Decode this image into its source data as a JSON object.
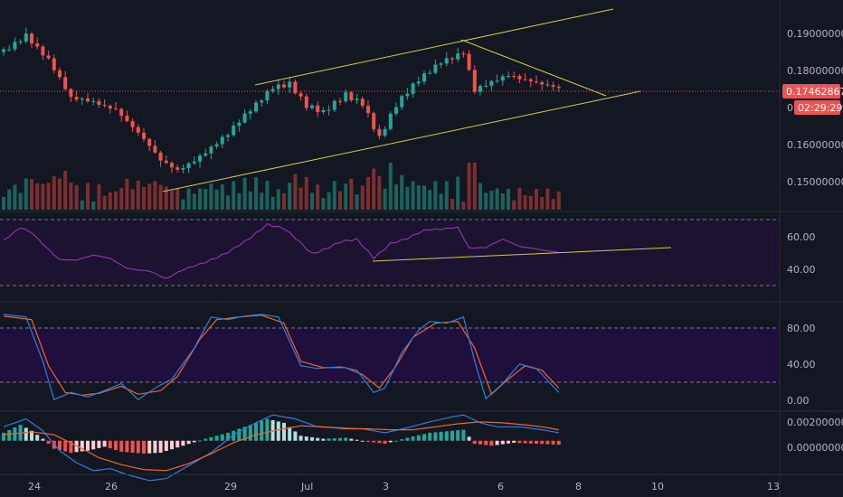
{
  "colors": {
    "background": "#131722",
    "bull": "#26a69a",
    "bear": "#ef5350",
    "trendline": "#d8c84a",
    "rsi": "#9c3bb8",
    "stoch_k": "#2c7ee0",
    "stoch_d": "#f0652b",
    "macd": "#2c7ee0",
    "signal": "#f0652b",
    "last_price": "#ef5350"
  },
  "last_price": {
    "value": "0.17462867",
    "countdown": "02:29:29",
    "hidden_label": "0."
  },
  "price_axis": {
    "ticks": [
      "0.19000000",
      "0.18000000",
      "0.16000000",
      "0.15000000"
    ]
  },
  "rsi_axis": {
    "ticks": [
      "60.00",
      "40.00"
    ]
  },
  "stoch_axis": {
    "ticks": [
      "80.00",
      "40.00",
      "0.00"
    ]
  },
  "macd_axis": {
    "ticks": [
      "0.00200000",
      "0.00000000"
    ]
  },
  "time_axis": {
    "ticks": [
      "24",
      "26",
      "29",
      "Jul",
      "3",
      "6",
      "8",
      "10",
      "13"
    ]
  },
  "chart_data": {
    "type": "candlestick",
    "title": "",
    "ylim": [
      0.143,
      0.197
    ],
    "candle_count": 100,
    "start_price": 0.1845,
    "close_path": [
      {
        "i": 0,
        "v": 0.1845
      },
      {
        "i": 4,
        "v": 0.1895
      },
      {
        "i": 8,
        "v": 0.1825
      },
      {
        "i": 12,
        "v": 0.1718
      },
      {
        "i": 16,
        "v": 0.1715
      },
      {
        "i": 20,
        "v": 0.17
      },
      {
        "i": 24,
        "v": 0.163
      },
      {
        "i": 28,
        "v": 0.1555
      },
      {
        "i": 31,
        "v": 0.1535
      },
      {
        "i": 35,
        "v": 0.1575
      },
      {
        "i": 40,
        "v": 0.1625
      },
      {
        "i": 44,
        "v": 0.169
      },
      {
        "i": 48,
        "v": 0.1758
      },
      {
        "i": 51,
        "v": 0.1765
      },
      {
        "i": 54,
        "v": 0.17
      },
      {
        "i": 57,
        "v": 0.168
      },
      {
        "i": 61,
        "v": 0.1735
      },
      {
        "i": 64,
        "v": 0.1715
      },
      {
        "i": 67,
        "v": 0.162
      },
      {
        "i": 70,
        "v": 0.17
      },
      {
        "i": 74,
        "v": 0.177
      },
      {
        "i": 78,
        "v": 0.1825
      },
      {
        "i": 82,
        "v": 0.1845
      },
      {
        "i": 84,
        "v": 0.174
      },
      {
        "i": 87,
        "v": 0.176
      },
      {
        "i": 90,
        "v": 0.1785
      },
      {
        "i": 94,
        "v": 0.1775
      },
      {
        "i": 99,
        "v": 0.1746
      }
    ],
    "indicators": {
      "rsi": {
        "ylim": [
          22,
          74
        ],
        "bands": [
          70,
          30
        ],
        "points": [
          {
            "i": 0,
            "v": 56
          },
          {
            "i": 3,
            "v": 65
          },
          {
            "i": 5,
            "v": 62
          },
          {
            "i": 8,
            "v": 51
          },
          {
            "i": 10,
            "v": 44
          },
          {
            "i": 13,
            "v": 43
          },
          {
            "i": 16,
            "v": 46
          },
          {
            "i": 19,
            "v": 44
          },
          {
            "i": 22,
            "v": 38
          },
          {
            "i": 26,
            "v": 36
          },
          {
            "i": 29,
            "v": 30
          },
          {
            "i": 32,
            "v": 36
          },
          {
            "i": 36,
            "v": 42
          },
          {
            "i": 40,
            "v": 49
          },
          {
            "i": 44,
            "v": 58
          },
          {
            "i": 47,
            "v": 67
          },
          {
            "i": 50,
            "v": 65
          },
          {
            "i": 52,
            "v": 59
          },
          {
            "i": 55,
            "v": 48
          },
          {
            "i": 57,
            "v": 50
          },
          {
            "i": 60,
            "v": 55
          },
          {
            "i": 63,
            "v": 57
          },
          {
            "i": 66,
            "v": 45
          },
          {
            "i": 69,
            "v": 55
          },
          {
            "i": 72,
            "v": 58
          },
          {
            "i": 75,
            "v": 63
          },
          {
            "i": 78,
            "v": 64
          },
          {
            "i": 81,
            "v": 66
          },
          {
            "i": 83,
            "v": 52
          },
          {
            "i": 86,
            "v": 52
          },
          {
            "i": 89,
            "v": 57
          },
          {
            "i": 92,
            "v": 52
          },
          {
            "i": 95,
            "v": 51
          },
          {
            "i": 99,
            "v": 49
          }
        ]
      },
      "stoch_rsi": {
        "ylim": [
          -8,
          108
        ],
        "bands": [
          80,
          20
        ],
        "k": [
          {
            "i": 0,
            "v": 98
          },
          {
            "i": 4,
            "v": 95
          },
          {
            "i": 7,
            "v": 45
          },
          {
            "i": 9,
            "v": 2
          },
          {
            "i": 12,
            "v": 10
          },
          {
            "i": 15,
            "v": 5
          },
          {
            "i": 18,
            "v": 12
          },
          {
            "i": 21,
            "v": 20
          },
          {
            "i": 24,
            "v": 2
          },
          {
            "i": 27,
            "v": 15
          },
          {
            "i": 30,
            "v": 25
          },
          {
            "i": 34,
            "v": 60
          },
          {
            "i": 37,
            "v": 95
          },
          {
            "i": 40,
            "v": 92
          },
          {
            "i": 43,
            "v": 96
          },
          {
            "i": 46,
            "v": 98
          },
          {
            "i": 49,
            "v": 95
          },
          {
            "i": 53,
            "v": 40
          },
          {
            "i": 56,
            "v": 37
          },
          {
            "i": 60,
            "v": 39
          },
          {
            "i": 63,
            "v": 35
          },
          {
            "i": 66,
            "v": 10
          },
          {
            "i": 68,
            "v": 15
          },
          {
            "i": 71,
            "v": 55
          },
          {
            "i": 74,
            "v": 80
          },
          {
            "i": 76,
            "v": 90
          },
          {
            "i": 79,
            "v": 88
          },
          {
            "i": 82,
            "v": 95
          },
          {
            "i": 84,
            "v": 45
          },
          {
            "i": 86,
            "v": 3
          },
          {
            "i": 89,
            "v": 20
          },
          {
            "i": 92,
            "v": 42
          },
          {
            "i": 95,
            "v": 37
          },
          {
            "i": 99,
            "v": 10
          }
        ],
        "d": [
          {
            "i": 0,
            "v": 96
          },
          {
            "i": 5,
            "v": 92
          },
          {
            "i": 8,
            "v": 40
          },
          {
            "i": 11,
            "v": 10
          },
          {
            "i": 14,
            "v": 7
          },
          {
            "i": 17,
            "v": 9
          },
          {
            "i": 21,
            "v": 17
          },
          {
            "i": 24,
            "v": 8
          },
          {
            "i": 28,
            "v": 12
          },
          {
            "i": 31,
            "v": 28
          },
          {
            "i": 35,
            "v": 70
          },
          {
            "i": 38,
            "v": 92
          },
          {
            "i": 42,
            "v": 95
          },
          {
            "i": 46,
            "v": 97
          },
          {
            "i": 50,
            "v": 88
          },
          {
            "i": 53,
            "v": 45
          },
          {
            "i": 57,
            "v": 38
          },
          {
            "i": 61,
            "v": 38
          },
          {
            "i": 64,
            "v": 30
          },
          {
            "i": 67,
            "v": 15
          },
          {
            "i": 70,
            "v": 40
          },
          {
            "i": 73,
            "v": 72
          },
          {
            "i": 77,
            "v": 88
          },
          {
            "i": 81,
            "v": 90
          },
          {
            "i": 84,
            "v": 60
          },
          {
            "i": 87,
            "v": 8
          },
          {
            "i": 90,
            "v": 25
          },
          {
            "i": 93,
            "v": 40
          },
          {
            "i": 96,
            "v": 35
          },
          {
            "i": 99,
            "v": 15
          }
        ]
      },
      "macd": {
        "ylim": [
          -0.0032,
          0.0027
        ],
        "hist": [
          {
            "i": 0,
            "v": 0.0008
          },
          {
            "i": 3,
            "v": 0.0016
          },
          {
            "i": 5,
            "v": 0.001
          },
          {
            "i": 7,
            "v": 0.0002
          },
          {
            "i": 9,
            "v": -0.0008
          },
          {
            "i": 12,
            "v": -0.0012
          },
          {
            "i": 15,
            "v": -0.001
          },
          {
            "i": 18,
            "v": -0.0006
          },
          {
            "i": 21,
            "v": -0.0011
          },
          {
            "i": 25,
            "v": -0.0013
          },
          {
            "i": 28,
            "v": -0.0012
          },
          {
            "i": 32,
            "v": -0.0005
          },
          {
            "i": 36,
            "v": 0.0002
          },
          {
            "i": 40,
            "v": 0.0008
          },
          {
            "i": 44,
            "v": 0.0016
          },
          {
            "i": 47,
            "v": 0.0022
          },
          {
            "i": 50,
            "v": 0.0018
          },
          {
            "i": 53,
            "v": 0.0005
          },
          {
            "i": 57,
            "v": 0.0002
          },
          {
            "i": 61,
            "v": 0.0003
          },
          {
            "i": 65,
            "v": -0.0001
          },
          {
            "i": 68,
            "v": -0.0003
          },
          {
            "i": 72,
            "v": 0.0003
          },
          {
            "i": 76,
            "v": 0.0008
          },
          {
            "i": 80,
            "v": 0.001
          },
          {
            "i": 82,
            "v": 0.0011
          },
          {
            "i": 84,
            "v": -0.0003
          },
          {
            "i": 87,
            "v": -0.0005
          },
          {
            "i": 91,
            "v": -0.0002
          },
          {
            "i": 95,
            "v": -0.0003
          },
          {
            "i": 99,
            "v": -0.0004
          }
        ],
        "macd_line": [
          {
            "i": 0,
            "v": 0.0014
          },
          {
            "i": 4,
            "v": 0.0022
          },
          {
            "i": 7,
            "v": 0.001
          },
          {
            "i": 10,
            "v": -0.001
          },
          {
            "i": 13,
            "v": -0.0022
          },
          {
            "i": 16,
            "v": -0.003
          },
          {
            "i": 19,
            "v": -0.0028
          },
          {
            "i": 22,
            "v": -0.0034
          },
          {
            "i": 26,
            "v": -0.004
          },
          {
            "i": 29,
            "v": -0.0038
          },
          {
            "i": 33,
            "v": -0.0025
          },
          {
            "i": 37,
            "v": -0.0012
          },
          {
            "i": 41,
            "v": 0.0006
          },
          {
            "i": 45,
            "v": 0.0018
          },
          {
            "i": 48,
            "v": 0.0026
          },
          {
            "i": 52,
            "v": 0.0022
          },
          {
            "i": 56,
            "v": 0.0014
          },
          {
            "i": 60,
            "v": 0.0013
          },
          {
            "i": 64,
            "v": 0.0012
          },
          {
            "i": 68,
            "v": 0.0008
          },
          {
            "i": 72,
            "v": 0.0013
          },
          {
            "i": 76,
            "v": 0.0019
          },
          {
            "i": 80,
            "v": 0.0024
          },
          {
            "i": 82,
            "v": 0.0026
          },
          {
            "i": 85,
            "v": 0.0018
          },
          {
            "i": 88,
            "v": 0.0014
          },
          {
            "i": 92,
            "v": 0.0014
          },
          {
            "i": 96,
            "v": 0.0011
          },
          {
            "i": 99,
            "v": 0.0008
          }
        ],
        "signal_line": [
          {
            "i": 0,
            "v": 0.0006
          },
          {
            "i": 5,
            "v": 0.0009
          },
          {
            "i": 9,
            "v": 0.0006
          },
          {
            "i": 13,
            "v": -0.0005
          },
          {
            "i": 17,
            "v": -0.0017
          },
          {
            "i": 21,
            "v": -0.0024
          },
          {
            "i": 25,
            "v": -0.0029
          },
          {
            "i": 29,
            "v": -0.003
          },
          {
            "i": 33,
            "v": -0.0023
          },
          {
            "i": 37,
            "v": -0.0013
          },
          {
            "i": 41,
            "v": -0.0002
          },
          {
            "i": 45,
            "v": 0.0006
          },
          {
            "i": 49,
            "v": 0.0011
          },
          {
            "i": 53,
            "v": 0.0015
          },
          {
            "i": 57,
            "v": 0.0014
          },
          {
            "i": 61,
            "v": 0.0012
          },
          {
            "i": 65,
            "v": 0.0012
          },
          {
            "i": 69,
            "v": 0.0011
          },
          {
            "i": 73,
            "v": 0.0011
          },
          {
            "i": 77,
            "v": 0.0014
          },
          {
            "i": 81,
            "v": 0.0017
          },
          {
            "i": 85,
            "v": 0.0019
          },
          {
            "i": 89,
            "v": 0.0018
          },
          {
            "i": 93,
            "v": 0.0016
          },
          {
            "i": 96,
            "v": 0.0014
          },
          {
            "i": 99,
            "v": 0.0011
          }
        ]
      }
    }
  }
}
